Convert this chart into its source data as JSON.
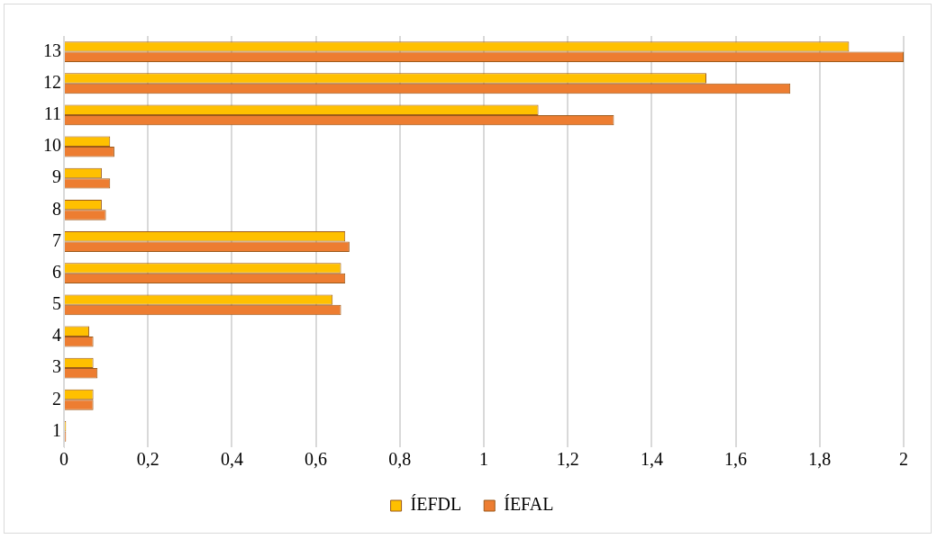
{
  "chart_data": {
    "type": "bar",
    "orientation": "horizontal",
    "categories": [
      "13",
      "12",
      "11",
      "10",
      "9",
      "8",
      "7",
      "6",
      "5",
      "4",
      "3",
      "2",
      "1"
    ],
    "series": [
      {
        "name": "ÍEFDL",
        "color": "#ffc000",
        "values": [
          1.87,
          1.53,
          1.13,
          0.11,
          0.09,
          0.09,
          0.67,
          0.66,
          0.64,
          0.06,
          0.07,
          0.07,
          0.005
        ]
      },
      {
        "name": "ÍEFAL",
        "color": "#ed7d31",
        "values": [
          2.0,
          1.73,
          1.31,
          0.12,
          0.11,
          0.1,
          0.68,
          0.67,
          0.66,
          0.07,
          0.08,
          0.07,
          0.005
        ]
      }
    ],
    "xlim": [
      0,
      2
    ],
    "xticks": [
      0,
      {
        "value": 0.2,
        "label": "0,2"
      },
      {
        "value": 0.4,
        "label": "0,4"
      },
      {
        "value": 0.6,
        "label": "0,6"
      },
      {
        "value": 0.8,
        "label": "0,8"
      },
      1,
      {
        "value": 1.2,
        "label": "1,2"
      },
      {
        "value": 1.4,
        "label": "1,4"
      },
      {
        "value": 1.6,
        "label": "1,6"
      },
      {
        "value": 1.8,
        "label": "1,8"
      },
      2
    ],
    "grid": "x",
    "legend": "bottom"
  }
}
